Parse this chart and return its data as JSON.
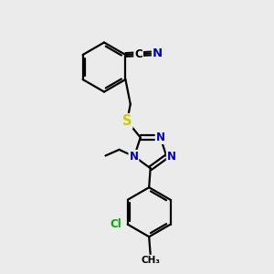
{
  "background_color": "#ebebeb",
  "bond_color": "#000000",
  "bond_width": 1.6,
  "atom_colors": {
    "C": "#000000",
    "N": "#0000cc",
    "S": "#cccc00",
    "Cl": "#00aa00"
  },
  "font_size": 8.5,
  "figsize": [
    3.0,
    3.0
  ],
  "dpi": 100
}
